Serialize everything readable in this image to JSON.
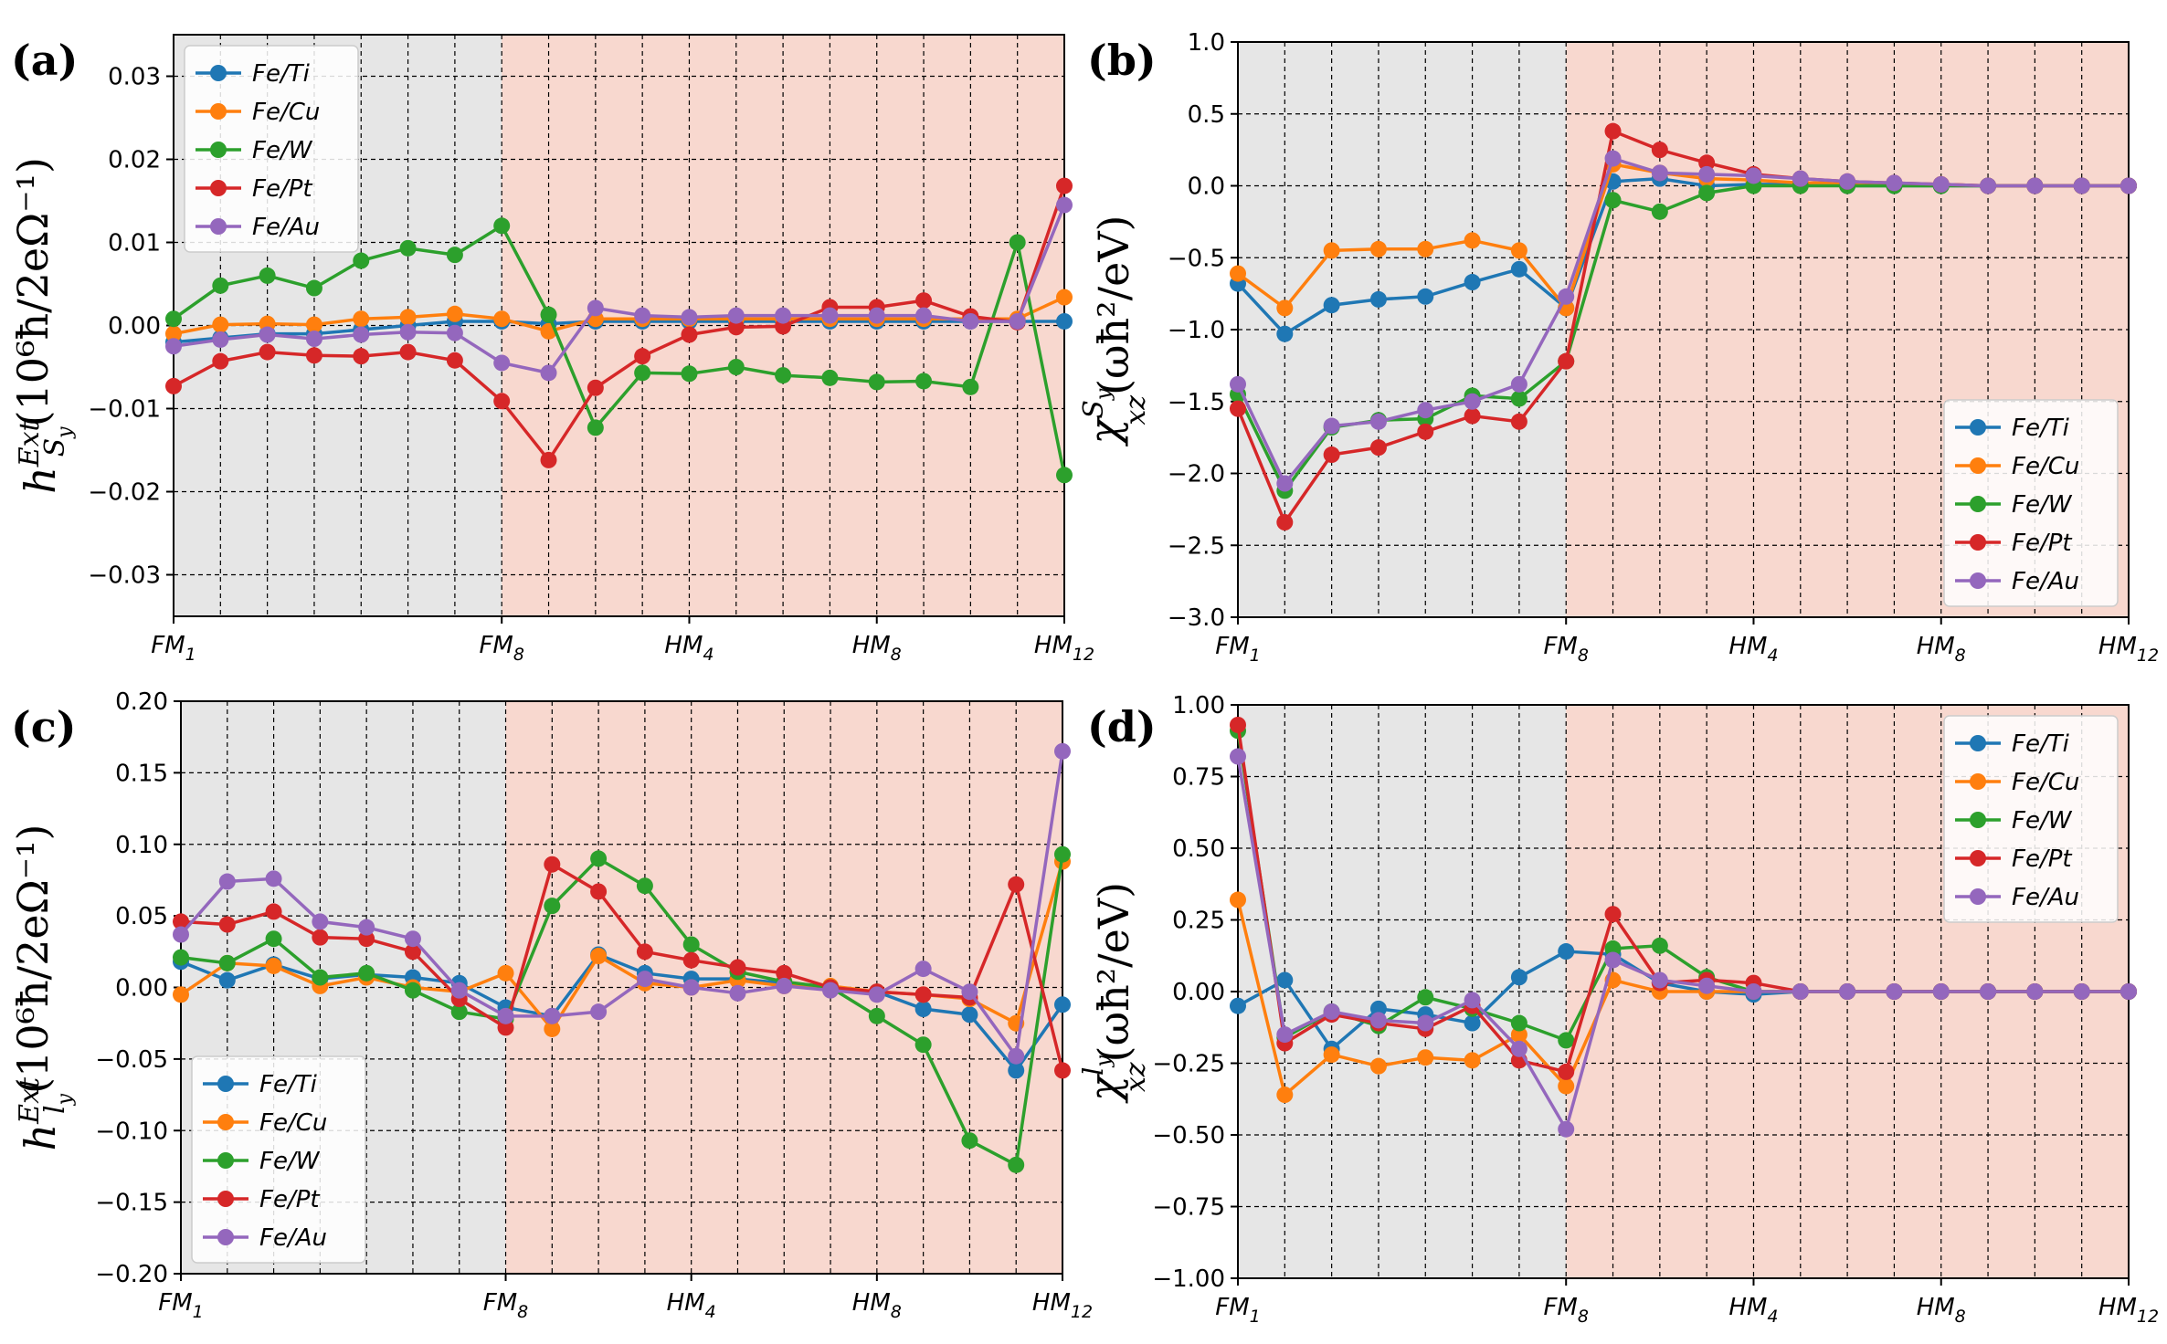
{
  "colors": {
    "Fe/Ti": "#1f77b4",
    "Fe/Cu": "#ff7f0e",
    "Fe/W": "#2ca02c",
    "Fe/Pt": "#d62728",
    "Fe/Au": "#9467bd",
    "fm_region": "#e6e6e6",
    "hm_region": "#f8d8cf"
  },
  "chart_data": [
    {
      "type": "line",
      "panel": "(a)",
      "ylabel_main": "h",
      "ylabel_sup": "Ext",
      "ylabel_sub": "S",
      "ylabel_subsub": "y",
      "ylabel_units": "(10⁶ħ/2eΩ⁻¹)",
      "x": [
        1,
        2,
        3,
        4,
        5,
        6,
        7,
        8,
        9,
        10,
        11,
        12,
        13,
        14,
        15,
        16,
        17,
        18,
        19,
        20
      ],
      "xtick_positions": [
        1,
        8,
        12,
        16,
        20
      ],
      "xtick_labels": [
        [
          "FM",
          "1"
        ],
        [
          "FM",
          "8"
        ],
        [
          "HM",
          "4"
        ],
        [
          "HM",
          "8"
        ],
        [
          "HM",
          "12"
        ]
      ],
      "xlim": [
        1,
        20
      ],
      "ylim": [
        -0.035,
        0.035
      ],
      "yticks": [
        -0.03,
        -0.02,
        -0.01,
        0.0,
        0.01,
        0.02,
        0.03
      ],
      "ytick_labels": [
        "−0.03",
        "−0.02",
        "−0.01",
        "0.00",
        "0.01",
        "0.02",
        "0.03"
      ],
      "fm_shade_end": 8,
      "legend_position": "top-left",
      "series": [
        {
          "name": "Fe/Ti",
          "values": [
            -0.002,
            -0.0015,
            -0.001,
            -0.001,
            -0.0005,
            0.0,
            0.0005,
            0.0005,
            0.0002,
            0.0005,
            0.0005,
            0.0005,
            0.0005,
            0.0005,
            0.0005,
            0.0005,
            0.0005,
            0.0005,
            0.0005,
            0.0005
          ]
        },
        {
          "name": "Fe/Cu",
          "values": [
            -0.001,
            0.0001,
            0.0002,
            0.0001,
            0.0008,
            0.001,
            0.0014,
            0.0008,
            -0.0007,
            0.0008,
            0.0008,
            0.0008,
            0.0008,
            0.0008,
            0.0008,
            0.0008,
            0.0008,
            0.0008,
            0.0008,
            0.0034
          ]
        },
        {
          "name": "Fe/W",
          "values": [
            0.0008,
            0.0048,
            0.006,
            0.0045,
            0.0078,
            0.0093,
            0.0085,
            0.012,
            0.0013,
            -0.0123,
            -0.0057,
            -0.0058,
            -0.005,
            -0.006,
            -0.0063,
            -0.0068,
            -0.0067,
            -0.0074,
            0.01,
            -0.018
          ]
        },
        {
          "name": "Fe/Pt",
          "values": [
            -0.0073,
            -0.0043,
            -0.0032,
            -0.0036,
            -0.0037,
            -0.0032,
            -0.0042,
            -0.0091,
            -0.0162,
            -0.0075,
            -0.0037,
            -0.0011,
            -0.0002,
            -0.0001,
            0.0022,
            0.0022,
            0.003,
            0.0011,
            0.0004,
            0.0168
          ]
        },
        {
          "name": "Fe/Au",
          "values": [
            -0.0025,
            -0.0017,
            -0.0011,
            -0.0016,
            -0.0011,
            -0.0008,
            -0.0009,
            -0.0045,
            -0.0057,
            0.0021,
            0.0012,
            0.001,
            0.0012,
            0.0012,
            0.0012,
            0.0012,
            0.0012,
            0.0005,
            0.0005,
            0.0145
          ]
        }
      ]
    },
    {
      "type": "line",
      "panel": "(b)",
      "ylabel_main": "χ",
      "ylabel_sup": "S",
      "ylabel_supsub": "y",
      "ylabel_sub": "xz",
      "ylabel_units": "(ωħ²/eV)",
      "x": [
        1,
        2,
        3,
        4,
        5,
        6,
        7,
        8,
        9,
        10,
        11,
        12,
        13,
        14,
        15,
        16,
        17,
        18,
        19,
        20
      ],
      "xtick_positions": [
        1,
        8,
        12,
        16,
        20
      ],
      "xtick_labels": [
        [
          "FM",
          "1"
        ],
        [
          "FM",
          "8"
        ],
        [
          "HM",
          "4"
        ],
        [
          "HM",
          "8"
        ],
        [
          "HM",
          "12"
        ]
      ],
      "xlim": [
        1,
        20
      ],
      "ylim": [
        -3.0,
        1.0
      ],
      "yticks": [
        -3.0,
        -2.5,
        -2.0,
        -1.5,
        -1.0,
        -0.5,
        0.0,
        0.5,
        1.0
      ],
      "ytick_labels": [
        "−3.0",
        "−2.5",
        "−2.0",
        "−1.5",
        "−1.0",
        "−0.5",
        "0.0",
        "0.5",
        "1.0"
      ],
      "fm_shade_end": 8,
      "legend_position": "bottom-right",
      "series": [
        {
          "name": "Fe/Ti",
          "values": [
            -0.68,
            -1.03,
            -0.83,
            -0.79,
            -0.77,
            -0.67,
            -0.58,
            -0.85,
            0.03,
            0.05,
            0.0,
            0.01,
            0.01,
            0.0,
            0.0,
            0.0,
            0.0,
            0.0,
            0.0,
            0.0
          ]
        },
        {
          "name": "Fe/Cu",
          "values": [
            -0.61,
            -0.85,
            -0.45,
            -0.44,
            -0.44,
            -0.38,
            -0.45,
            -0.85,
            0.15,
            0.09,
            0.05,
            0.04,
            0.02,
            0.02,
            0.01,
            0.01,
            0.0,
            0.0,
            0.0,
            0.0
          ]
        },
        {
          "name": "Fe/W",
          "values": [
            -1.45,
            -2.12,
            -1.68,
            -1.63,
            -1.62,
            -1.46,
            -1.48,
            -1.22,
            -0.1,
            -0.18,
            -0.05,
            0.0,
            0.0,
            0.0,
            0.0,
            0.0,
            0.0,
            0.0,
            0.0,
            0.0
          ]
        },
        {
          "name": "Fe/Pt",
          "values": [
            -1.55,
            -2.34,
            -1.87,
            -1.82,
            -1.71,
            -1.6,
            -1.64,
            -1.22,
            0.38,
            0.25,
            0.16,
            0.08,
            0.05,
            0.03,
            0.02,
            0.01,
            0.0,
            0.0,
            0.0,
            0.0
          ]
        },
        {
          "name": "Fe/Au",
          "values": [
            -1.38,
            -2.07,
            -1.67,
            -1.64,
            -1.56,
            -1.5,
            -1.38,
            -0.77,
            0.19,
            0.09,
            0.08,
            0.07,
            0.05,
            0.03,
            0.02,
            0.01,
            0.0,
            0.0,
            0.0,
            0.0
          ]
        }
      ]
    },
    {
      "type": "line",
      "panel": "(c)",
      "ylabel_main": "h",
      "ylabel_sup": "Ext",
      "ylabel_sub": "l",
      "ylabel_subsub": "y",
      "ylabel_units": "(10⁶ħ/2eΩ⁻¹)",
      "x": [
        1,
        2,
        3,
        4,
        5,
        6,
        7,
        8,
        9,
        10,
        11,
        12,
        13,
        14,
        15,
        16,
        17,
        18,
        19,
        20
      ],
      "xtick_positions": [
        1,
        8,
        12,
        16,
        20
      ],
      "xtick_labels": [
        [
          "FM",
          "1"
        ],
        [
          "FM",
          "8"
        ],
        [
          "HM",
          "4"
        ],
        [
          "HM",
          "8"
        ],
        [
          "HM",
          "12"
        ]
      ],
      "xlim": [
        1,
        20
      ],
      "ylim": [
        -0.2,
        0.2
      ],
      "yticks": [
        -0.2,
        -0.15,
        -0.1,
        -0.05,
        0.0,
        0.05,
        0.1,
        0.15,
        0.2
      ],
      "ytick_labels": [
        "−0.20",
        "−0.15",
        "−0.10",
        "−0.05",
        "0.00",
        "0.05",
        "0.10",
        "0.15",
        "0.20"
      ],
      "fm_shade_end": 8,
      "legend_position": "bottom-left",
      "series": [
        {
          "name": "Fe/Ti",
          "values": [
            0.018,
            0.005,
            0.016,
            0.006,
            0.009,
            0.007,
            0.003,
            -0.014,
            -0.02,
            0.023,
            0.01,
            0.006,
            0.006,
            0.003,
            0.0,
            -0.003,
            -0.015,
            -0.019,
            -0.058,
            -0.012
          ]
        },
        {
          "name": "Fe/Cu",
          "values": [
            -0.005,
            0.017,
            0.015,
            0.001,
            0.007,
            0.0,
            -0.003,
            0.01,
            -0.029,
            0.022,
            0.003,
            0.0,
            0.005,
            0.001,
            0.001,
            -0.003,
            -0.005,
            -0.008,
            -0.025,
            0.088
          ]
        },
        {
          "name": "Fe/W",
          "values": [
            0.021,
            0.017,
            0.034,
            0.007,
            0.01,
            -0.002,
            -0.017,
            -0.022,
            0.057,
            0.09,
            0.071,
            0.03,
            0.011,
            0.004,
            0.0,
            -0.02,
            -0.04,
            -0.107,
            -0.124,
            0.093
          ]
        },
        {
          "name": "Fe/Pt",
          "values": [
            0.046,
            0.044,
            0.053,
            0.035,
            0.034,
            0.025,
            -0.008,
            -0.028,
            0.086,
            0.067,
            0.025,
            0.019,
            0.014,
            0.01,
            0.0,
            -0.003,
            -0.005,
            -0.007,
            0.072,
            -0.058
          ]
        },
        {
          "name": "Fe/Au",
          "values": [
            0.037,
            0.074,
            0.076,
            0.046,
            0.042,
            0.034,
            -0.002,
            -0.02,
            -0.02,
            -0.017,
            0.006,
            0.0,
            -0.004,
            0.001,
            -0.002,
            -0.005,
            0.013,
            -0.003,
            -0.048,
            0.165
          ]
        }
      ]
    },
    {
      "type": "line",
      "panel": "(d)",
      "ylabel_main": "χ",
      "ylabel_sup": "l",
      "ylabel_supsub": "y",
      "ylabel_sub": "xz",
      "ylabel_units": "(ωħ²/eV)",
      "x": [
        1,
        2,
        3,
        4,
        5,
        6,
        7,
        8,
        9,
        10,
        11,
        12,
        13,
        14,
        15,
        16,
        17,
        18,
        19,
        20
      ],
      "xtick_positions": [
        1,
        8,
        12,
        16,
        20
      ],
      "xtick_labels": [
        [
          "FM",
          "1"
        ],
        [
          "FM",
          "8"
        ],
        [
          "HM",
          "4"
        ],
        [
          "HM",
          "8"
        ],
        [
          "HM",
          "12"
        ]
      ],
      "xlim": [
        1,
        20
      ],
      "ylim": [
        -1.0,
        1.0
      ],
      "yticks": [
        -1.0,
        -0.75,
        -0.5,
        -0.25,
        0.0,
        0.25,
        0.5,
        0.75,
        1.0
      ],
      "ytick_labels": [
        "−1.00",
        "−0.75",
        "−0.50",
        "−0.25",
        "0.00",
        "0.25",
        "0.50",
        "0.75",
        "1.00"
      ],
      "fm_shade_end": 8,
      "legend_position": "top-right",
      "series": [
        {
          "name": "Fe/Ti",
          "values": [
            -0.05,
            0.04,
            -0.2,
            -0.06,
            -0.08,
            -0.11,
            0.05,
            0.14,
            0.13,
            0.03,
            0.0,
            -0.01,
            0.0,
            0.0,
            0.0,
            0.0,
            0.0,
            0.0,
            0.0,
            0.0
          ]
        },
        {
          "name": "Fe/Cu",
          "values": [
            0.32,
            -0.36,
            -0.22,
            -0.26,
            -0.23,
            -0.24,
            -0.15,
            -0.33,
            0.04,
            0.0,
            0.0,
            0.0,
            0.0,
            0.0,
            0.0,
            0.0,
            0.0,
            0.0,
            0.0,
            0.0
          ]
        },
        {
          "name": "Fe/W",
          "values": [
            0.91,
            -0.16,
            -0.07,
            -0.12,
            -0.02,
            -0.06,
            -0.11,
            -0.17,
            0.15,
            0.16,
            0.05,
            0.0,
            0.0,
            0.0,
            0.0,
            0.0,
            0.0,
            0.0,
            0.0,
            0.0
          ]
        },
        {
          "name": "Fe/Pt",
          "values": [
            0.93,
            -0.18,
            -0.08,
            -0.11,
            -0.13,
            -0.05,
            -0.24,
            -0.28,
            0.27,
            0.03,
            0.04,
            0.03,
            0.0,
            0.0,
            0.0,
            0.0,
            0.0,
            0.0,
            0.0,
            0.0
          ]
        },
        {
          "name": "Fe/Au",
          "values": [
            0.82,
            -0.15,
            -0.07,
            -0.1,
            -0.11,
            -0.03,
            -0.2,
            -0.48,
            0.11,
            0.04,
            0.02,
            0.0,
            0.0,
            0.0,
            0.0,
            0.0,
            0.0,
            0.0,
            0.0,
            0.0
          ]
        }
      ]
    }
  ]
}
